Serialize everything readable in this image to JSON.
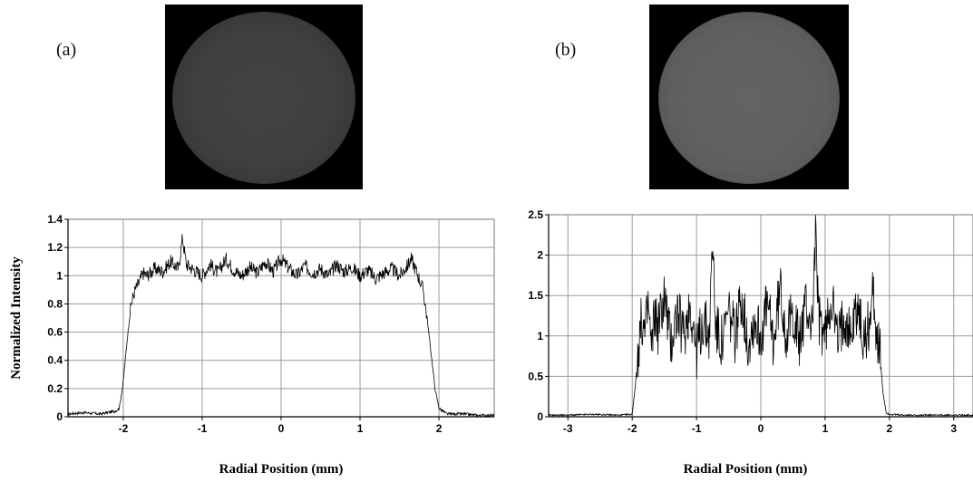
{
  "panels": {
    "a": {
      "label": "(a)"
    },
    "b": {
      "label": "(b)"
    }
  },
  "colors": {
    "grid": "#9a9a9a",
    "axis": "#000000",
    "trace": "#000000",
    "background": "#ffffff"
  },
  "chart_data": [
    {
      "type": "line",
      "panel": "(a)",
      "title": "",
      "xlabel": "Radial Position (mm)",
      "ylabel": "Normalized Intensity",
      "xlim": [
        -2.7,
        2.7
      ],
      "ylim": [
        0,
        1.4
      ],
      "xticks": [
        -2,
        -1,
        0,
        1,
        2
      ],
      "yticks": [
        0,
        0.2,
        0.4,
        0.6,
        0.8,
        1,
        1.2,
        1.4
      ],
      "ytick_labels": [
        "0",
        "0.2",
        "0.4",
        "0.6",
        "0.8",
        "1",
        "1.2",
        "1.4"
      ],
      "grid": true,
      "x": [
        -2.7,
        -2.5,
        -2.3,
        -2.1,
        -2.05,
        -2.0,
        -1.95,
        -1.9,
        -1.85,
        -1.8,
        -1.75,
        -1.7,
        -1.6,
        -1.5,
        -1.4,
        -1.3,
        -1.25,
        -1.2,
        -1.1,
        -1.0,
        -0.9,
        -0.8,
        -0.7,
        -0.6,
        -0.5,
        -0.4,
        -0.3,
        -0.2,
        -0.1,
        0.0,
        0.1,
        0.2,
        0.3,
        0.4,
        0.5,
        0.6,
        0.7,
        0.8,
        0.9,
        1.0,
        1.1,
        1.2,
        1.3,
        1.4,
        1.5,
        1.6,
        1.65,
        1.7,
        1.75,
        1.8,
        1.85,
        1.9,
        1.95,
        2.0,
        2.1,
        2.3,
        2.5,
        2.7
      ],
      "y": [
        0.02,
        0.03,
        0.02,
        0.04,
        0.06,
        0.25,
        0.55,
        0.8,
        0.9,
        0.95,
        1.02,
        1.0,
        1.05,
        1.03,
        1.1,
        1.05,
        1.27,
        1.08,
        1.04,
        1.0,
        1.08,
        1.02,
        1.12,
        1.04,
        1.0,
        1.06,
        1.02,
        1.1,
        1.03,
        1.12,
        1.05,
        1.0,
        1.07,
        1.02,
        1.05,
        1.0,
        1.08,
        1.03,
        1.06,
        1.0,
        1.04,
        0.98,
        1.02,
        1.05,
        1.0,
        1.07,
        1.12,
        1.05,
        0.98,
        0.9,
        0.7,
        0.45,
        0.2,
        0.06,
        0.02,
        0.02,
        0.01,
        0.01
      ]
    },
    {
      "type": "line",
      "panel": "(b)",
      "title": "",
      "xlabel": "Radial Position (mm)",
      "ylabel": "",
      "xlim": [
        -3.3,
        3.3
      ],
      "ylim": [
        0,
        2.5
      ],
      "xticks": [
        -3,
        -2,
        -1,
        0,
        1,
        2,
        3
      ],
      "yticks": [
        0,
        0.5,
        1,
        1.5,
        2,
        2.5
      ],
      "ytick_labels": [
        "0",
        "0.5",
        "1",
        "1.5",
        "2",
        "2.5"
      ],
      "grid": true,
      "x": [
        -3.3,
        -3.0,
        -2.6,
        -2.2,
        -2.0,
        -1.95,
        -1.9,
        -1.85,
        -1.8,
        -1.75,
        -1.7,
        -1.65,
        -1.6,
        -1.5,
        -1.4,
        -1.3,
        -1.2,
        -1.1,
        -1.0,
        -0.9,
        -0.8,
        -0.75,
        -0.7,
        -0.6,
        -0.5,
        -0.4,
        -0.3,
        -0.2,
        -0.1,
        0.0,
        0.1,
        0.2,
        0.3,
        0.4,
        0.5,
        0.6,
        0.7,
        0.8,
        0.85,
        0.9,
        1.0,
        1.1,
        1.2,
        1.3,
        1.4,
        1.5,
        1.6,
        1.7,
        1.75,
        1.8,
        1.85,
        1.9,
        1.95,
        2.0,
        2.2,
        2.6,
        3.0,
        3.3
      ],
      "y": [
        0.02,
        0.02,
        0.03,
        0.02,
        0.03,
        0.4,
        0.9,
        1.2,
        1.0,
        1.4,
        0.8,
        1.3,
        1.1,
        1.5,
        0.9,
        1.3,
        1.0,
        1.4,
        0.8,
        1.2,
        1.0,
        2.2,
        1.1,
        0.9,
        1.3,
        1.0,
        1.5,
        0.9,
        1.2,
        1.0,
        1.4,
        0.9,
        1.6,
        1.0,
        1.3,
        0.9,
        1.4,
        1.1,
        2.3,
        1.2,
        1.0,
        1.5,
        0.9,
        1.3,
        1.0,
        1.4,
        0.9,
        1.2,
        1.6,
        1.0,
        0.8,
        0.3,
        0.05,
        0.03,
        0.02,
        0.02,
        0.02,
        0.02
      ]
    }
  ]
}
